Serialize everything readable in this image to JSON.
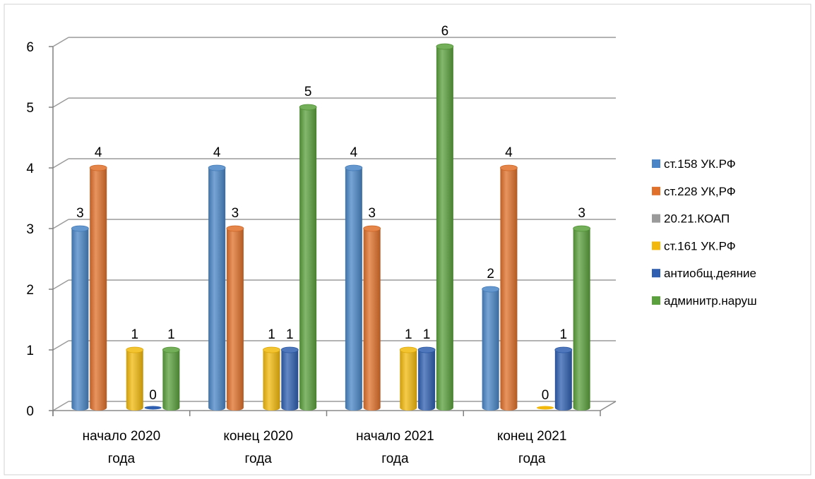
{
  "chart_data": {
    "type": "bar",
    "categories": [
      [
        "начало 2020",
        "года"
      ],
      [
        "конец 2020",
        "года"
      ],
      [
        "начало 2021",
        "года"
      ],
      [
        "конец 2021",
        "года"
      ]
    ],
    "series": [
      {
        "name": "ст.158 УК.РФ",
        "color": "#4a86c7",
        "values": [
          3,
          4,
          4,
          2
        ],
        "labels": [
          "3",
          "4",
          "4",
          "2"
        ]
      },
      {
        "name": "ст.228 УК,РФ",
        "color": "#e0702a",
        "values": [
          4,
          3,
          3,
          4
        ],
        "labels": [
          "4",
          "3",
          "3",
          "4"
        ]
      },
      {
        "name": "20.21.КОАП",
        "color": "#9a9a9a",
        "values": [
          0,
          0,
          0,
          0
        ],
        "labels": [
          "",
          "",
          "",
          ""
        ]
      },
      {
        "name": "ст.161 УК.РФ",
        "color": "#f2b90c",
        "values": [
          1,
          1,
          1,
          0
        ],
        "labels": [
          "1",
          "1",
          "1",
          "0"
        ]
      },
      {
        "name": "антиобщ.деяние",
        "color": "#2f5fb0",
        "values": [
          0,
          1,
          1,
          1
        ],
        "labels": [
          "0",
          "1",
          "1",
          "1"
        ]
      },
      {
        "name": "админитр.наруш",
        "color": "#5aa03c",
        "values": [
          1,
          5,
          6,
          3
        ],
        "labels": [
          "1",
          "5",
          "6",
          "3"
        ]
      }
    ],
    "ylim": [
      0,
      6
    ],
    "yticks": [
      "0",
      "1",
      "2",
      "3",
      "4",
      "5",
      "6"
    ],
    "grid": true,
    "legend_position": "right",
    "title": "",
    "xlabel": "",
    "ylabel": ""
  }
}
